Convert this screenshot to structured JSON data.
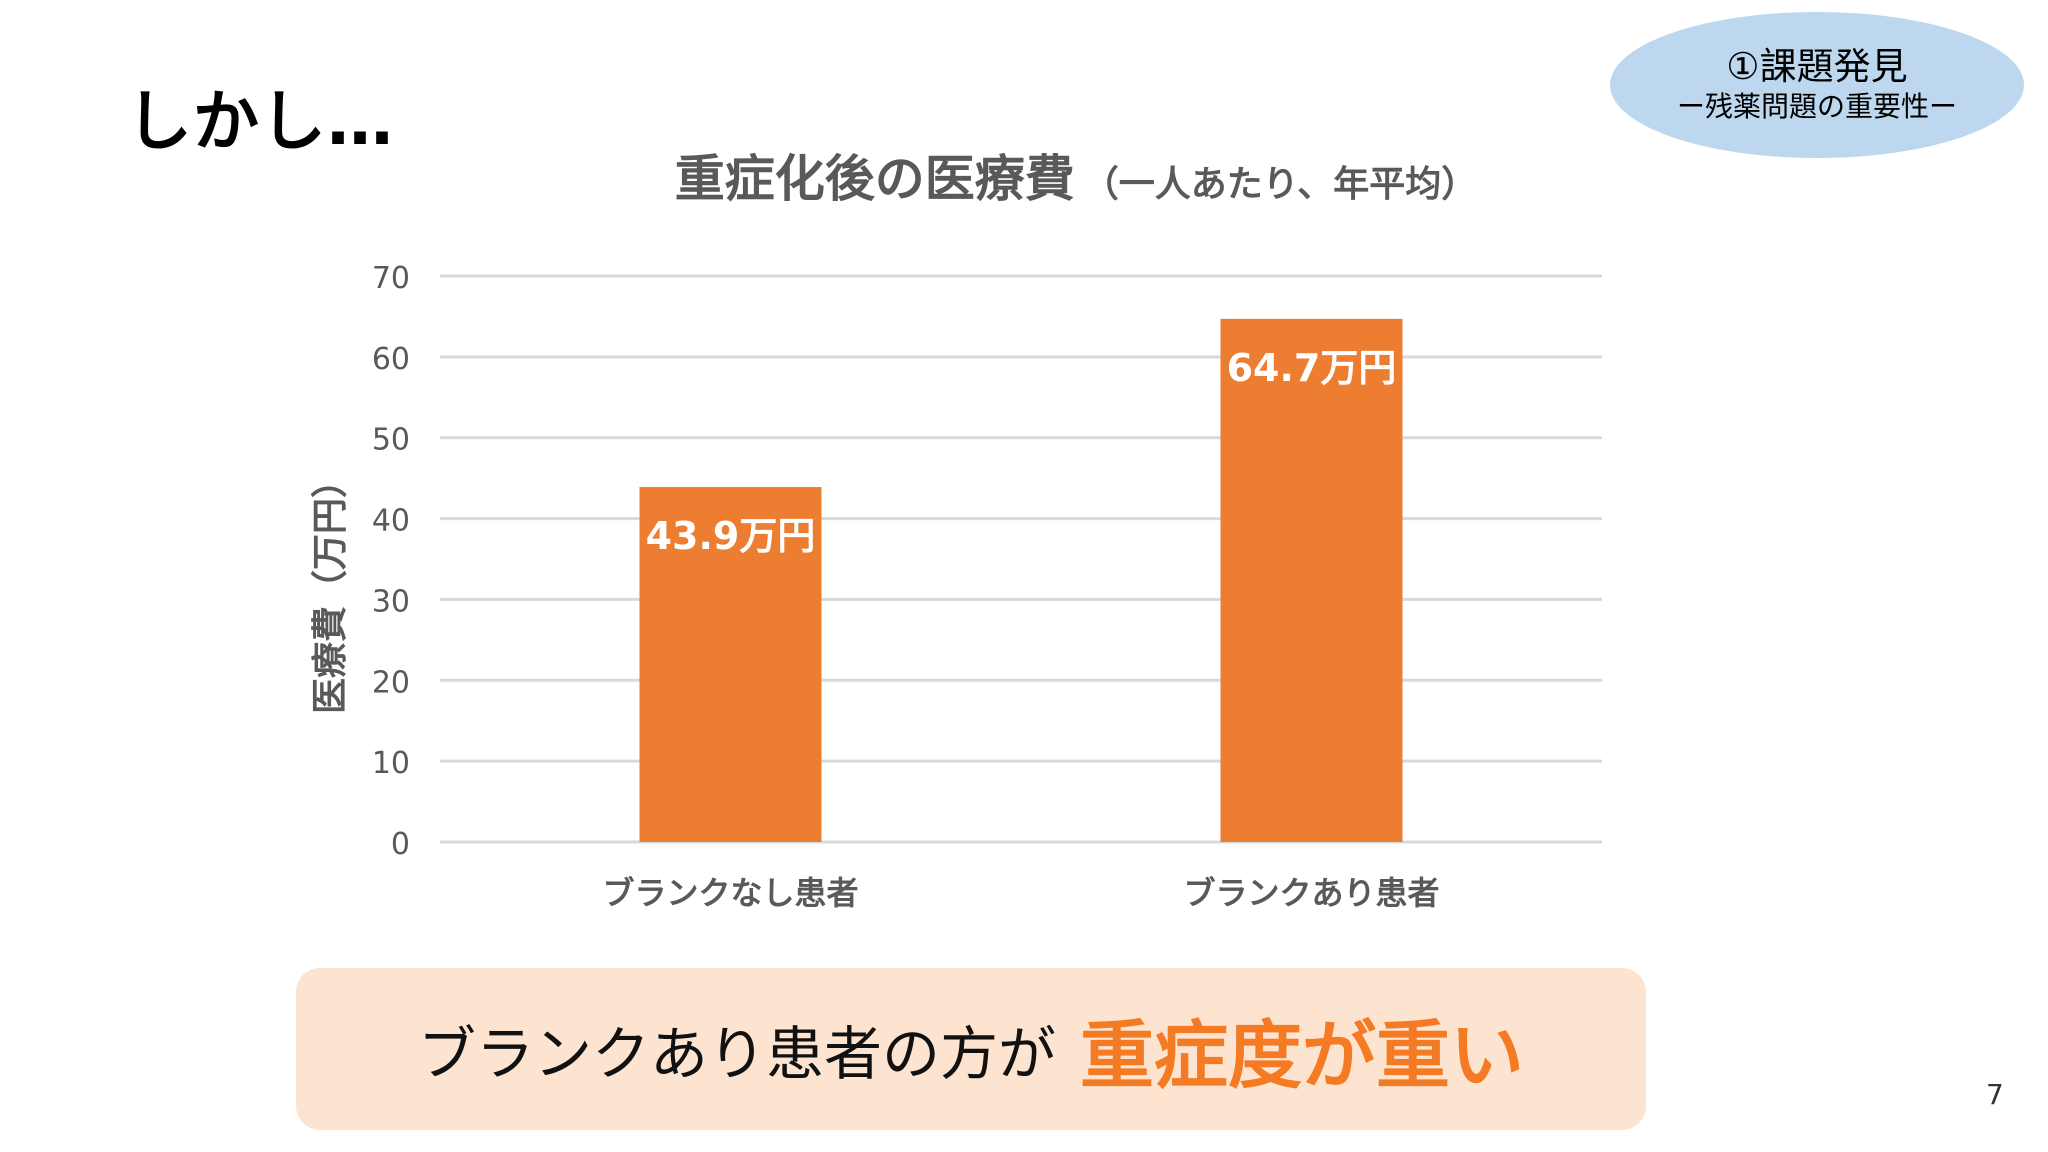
{
  "slide": {
    "heading": "しかし…",
    "badge_title": "①課題発見",
    "badge_subtitle": "ー残薬問題の重要性ー",
    "callout_lead": "ブランクあり患者の方が",
    "callout_emphasis": "重症度が重い",
    "page_number": "7"
  },
  "colors": {
    "bar": "#ed7d31",
    "grid": "#d9d9d9",
    "axis_text": "#595959",
    "badge": "#bdd7ee",
    "callout_bg": "#fce4d0",
    "emphasis": "#f47a23"
  },
  "chart_data": {
    "type": "bar",
    "title": "重症化後の医療費",
    "subtitle": "（一人あたり、年平均）",
    "xlabel": "",
    "ylabel": "医療費（万円）",
    "categories": [
      "ブランクなし患者",
      "ブランクあり患者"
    ],
    "values": [
      43.9,
      64.7
    ],
    "data_labels": [
      "43.9万円",
      "64.7万円"
    ],
    "ylim": [
      0,
      70
    ],
    "yticks": [
      0,
      10,
      20,
      30,
      40,
      50,
      60,
      70
    ],
    "grid": true,
    "legend": "none"
  }
}
